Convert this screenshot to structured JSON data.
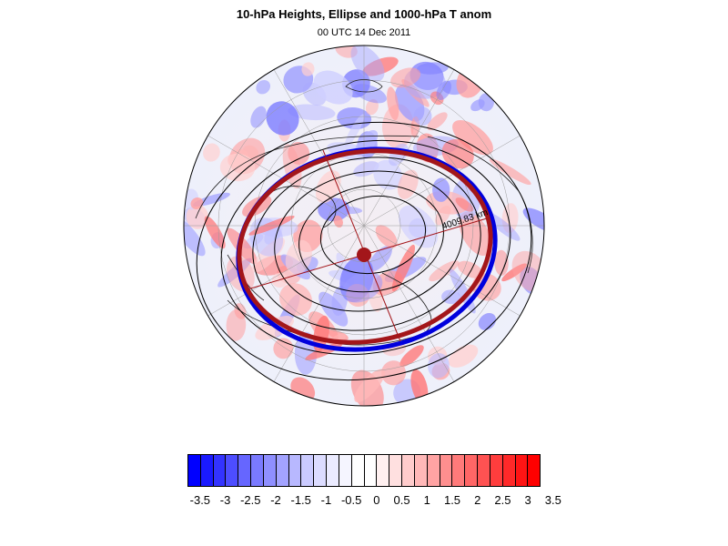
{
  "header": {
    "title": "10-hPa Heights, Ellipse and 1000-hPa T anom",
    "subtitle": "00 UTC 14 Dec 2011"
  },
  "map": {
    "projection": "polar stereographic (north pole)",
    "ellipse_label": "4009.83 km",
    "ellipse_color": "#a3161a",
    "outer_contour_color": "#0000dd"
  },
  "colorbar": {
    "labels": [
      "-3.5",
      "-3",
      "-2.5",
      "-2",
      "-1.5",
      "-1",
      "-0.5",
      "0",
      "0.5",
      "1",
      "1.5",
      "2",
      "2.5",
      "3",
      "3.5"
    ],
    "colors": [
      "#0000ff",
      "#1a1aff",
      "#3333ff",
      "#4d4dff",
      "#6666ff",
      "#7a7aff",
      "#8f8fff",
      "#a3a3ff",
      "#b8b8ff",
      "#cbcbff",
      "#dcdcff",
      "#ebebff",
      "#f5f5ff",
      "#ffffff",
      "#ffffff",
      "#fff0f0",
      "#ffe0e0",
      "#ffcccc",
      "#ffb8b8",
      "#ffa3a3",
      "#ff8f8f",
      "#ff7a7a",
      "#ff6666",
      "#ff5252",
      "#ff3d3d",
      "#ff2929",
      "#ff1414",
      "#ff0000"
    ]
  }
}
